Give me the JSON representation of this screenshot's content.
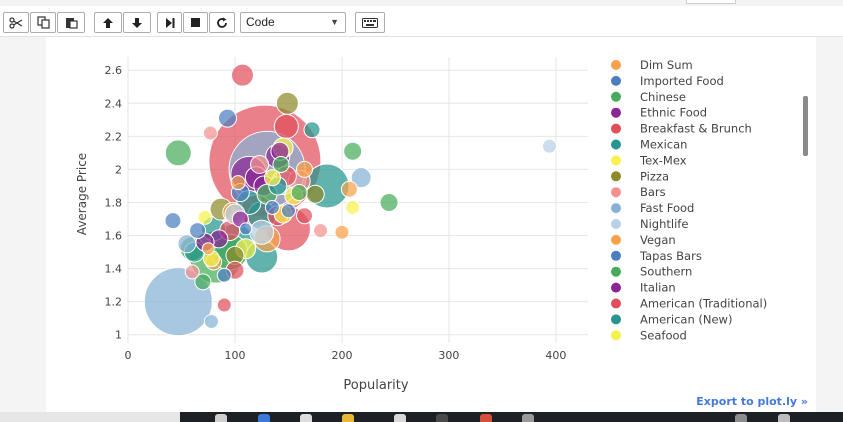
{
  "toolbar": {
    "buttons": [
      {
        "name": "cut-button",
        "icon": "scissors-icon",
        "glyph": "✄"
      },
      {
        "name": "copy-button",
        "icon": "copy-icon",
        "glyph": "⧉"
      },
      {
        "name": "paste-button",
        "icon": "paste-icon",
        "glyph": "📋"
      },
      {
        "name": "move-up-button",
        "icon": "arrow-up-icon",
        "glyph": "🡅"
      },
      {
        "name": "move-down-button",
        "icon": "arrow-down-icon",
        "glyph": "🡇"
      },
      {
        "name": "run-button",
        "icon": "step-forward-icon",
        "glyph": "▶|"
      },
      {
        "name": "stop-button",
        "icon": "stop-icon",
        "glyph": "■"
      },
      {
        "name": "restart-button",
        "icon": "restart-icon",
        "glyph": "↻"
      }
    ],
    "cell_type": "Code",
    "keyboard_icon": "keyboard-icon"
  },
  "export_link": "Export to plot.ly »",
  "chart_data": {
    "type": "scatter",
    "subtype": "bubble",
    "xlabel": "Popularity",
    "ylabel": "Average Price",
    "xlim": [
      0,
      430
    ],
    "ylim": [
      0.95,
      2.68
    ],
    "xticks": [
      "0",
      "100",
      "200",
      "300",
      "400"
    ],
    "yticks": [
      "1",
      "1.2",
      "1.4",
      "1.6",
      "1.8",
      "2",
      "2.2",
      "2.4",
      "2.6"
    ],
    "grid": true,
    "legend_position": "right",
    "series": [
      {
        "name": "Dim Sum",
        "color": "#f7a24a",
        "points": [
          [
            207,
            1.88,
            8
          ],
          [
            98,
            1.74,
            10
          ],
          [
            75,
            1.52,
            6
          ],
          [
            103,
            1.92,
            7
          ]
        ]
      },
      {
        "name": "Imported Food",
        "color": "#4c7fc0",
        "points": [
          [
            93,
            2.31,
            9
          ],
          [
            42,
            1.69,
            8
          ],
          [
            135,
            1.77,
            7
          ],
          [
            110,
            1.64,
            6
          ]
        ]
      },
      {
        "name": "Chinese",
        "color": "#46ac5c",
        "points": [
          [
            244,
            1.8,
            9
          ],
          [
            210,
            2.11,
            9
          ],
          [
            82,
            1.47,
            26
          ],
          [
            60,
            1.52,
            12
          ],
          [
            143,
            2.03,
            8
          ]
        ]
      },
      {
        "name": "Ethnic Food",
        "color": "#8a2596",
        "points": [
          [
            113,
            1.97,
            18
          ],
          [
            140,
            2.08,
            12
          ],
          [
            85,
            1.58,
            9
          ],
          [
            127,
            1.9,
            10
          ]
        ]
      },
      {
        "name": "Breakfast & Brunch",
        "color": "#e14f5d",
        "points": [
          [
            107,
            2.57,
            11
          ],
          [
            148,
            2.26,
            12
          ],
          [
            150,
            1.64,
            22
          ],
          [
            120,
            1.75,
            16
          ],
          [
            95,
            1.63,
            10
          ],
          [
            165,
            1.72,
            8
          ]
        ]
      },
      {
        "name": "Mexican",
        "color": "#26958f",
        "points": [
          [
            186,
            1.9,
            22
          ],
          [
            125,
            1.47,
            16
          ],
          [
            172,
            2.24,
            8
          ],
          [
            113,
            1.8,
            12
          ]
        ]
      },
      {
        "name": "Tex-Mex",
        "color": "#f6f14e",
        "points": [
          [
            210,
            1.77,
            7
          ],
          [
            155,
            1.84,
            9
          ],
          [
            145,
            2.13,
            10
          ],
          [
            72,
            1.71,
            7
          ]
        ]
      },
      {
        "name": "Pizza",
        "color": "#8e8a2a",
        "points": [
          [
            149,
            2.4,
            11
          ],
          [
            87,
            1.76,
            11
          ],
          [
            175,
            1.85,
            9
          ],
          [
            100,
            1.48,
            9
          ]
        ]
      },
      {
        "name": "Bars",
        "color": "#f3918d",
        "points": [
          [
            77,
            2.22,
            7
          ],
          [
            160,
            1.93,
            11
          ],
          [
            180,
            1.63,
            7
          ],
          [
            123,
            2.03,
            9
          ],
          [
            60,
            1.38,
            7
          ]
        ]
      },
      {
        "name": "Fast Food",
        "color": "#86b1d6",
        "points": [
          [
            47,
            1.2,
            34
          ],
          [
            218,
            1.95,
            10
          ],
          [
            78,
            1.08,
            7
          ],
          [
            130,
            2.0,
            38
          ],
          [
            55,
            1.55,
            9
          ]
        ]
      },
      {
        "name": "Nightlife",
        "color": "#b9d1e6",
        "points": [
          [
            394,
            2.14,
            7
          ],
          [
            145,
            1.92,
            12
          ],
          [
            100,
            1.73,
            10
          ],
          [
            125,
            1.62,
            12
          ]
        ]
      },
      {
        "name": "Vegan",
        "color": "#f7a24a",
        "points": [
          [
            130,
            1.58,
            13
          ],
          [
            80,
            1.44,
            8
          ],
          [
            200,
            1.62,
            7
          ],
          [
            165,
            2.0,
            8
          ]
        ]
      },
      {
        "name": "Tapas Bars",
        "color": "#4c7fc0",
        "points": [
          [
            105,
            1.86,
            9
          ],
          [
            65,
            1.63,
            8
          ],
          [
            150,
            1.75,
            7
          ],
          [
            90,
            1.36,
            7
          ]
        ]
      },
      {
        "name": "Southern",
        "color": "#46ac5c",
        "points": [
          [
            47,
            2.1,
            13
          ],
          [
            95,
            1.5,
            18
          ],
          [
            160,
            1.86,
            8
          ],
          [
            70,
            1.32,
            8
          ],
          [
            130,
            1.85,
            10
          ]
        ]
      },
      {
        "name": "Italian",
        "color": "#8a2596",
        "points": [
          [
            142,
            2.11,
            9
          ],
          [
            120,
            1.95,
            11
          ],
          [
            72,
            1.56,
            9
          ],
          [
            105,
            1.7,
            8
          ]
        ]
      },
      {
        "name": "American (Traditional)",
        "color": "#e14f5d",
        "points": [
          [
            128,
            2.05,
            56
          ],
          [
            148,
            1.96,
            10
          ],
          [
            90,
            1.18,
            7
          ],
          [
            100,
            1.39,
            9
          ],
          [
            140,
            1.72,
            10
          ]
        ]
      },
      {
        "name": "American (New)",
        "color": "#26958f",
        "points": [
          [
            100,
            1.55,
            20
          ],
          [
            125,
            1.72,
            14
          ],
          [
            80,
            1.64,
            12
          ],
          [
            140,
            1.9,
            9
          ],
          [
            62,
            1.5,
            10
          ]
        ]
      },
      {
        "name": "Seafood",
        "color": "#f6f14e",
        "points": [
          [
            145,
            1.73,
            9
          ],
          [
            110,
            1.52,
            10
          ],
          [
            78,
            1.46,
            8
          ],
          [
            135,
            1.95,
            8
          ]
        ]
      }
    ]
  }
}
